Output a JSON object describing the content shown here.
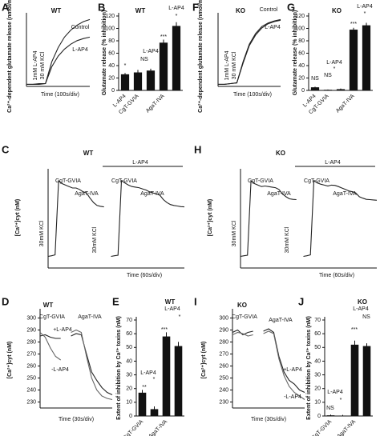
{
  "chart_data": [
    {
      "type": "line",
      "panel": "A",
      "title": "WT",
      "y_label": "Ca²⁺-dependent glutamate release (nmol/mg/div)",
      "x_label": "Time (100s/div)",
      "annotations": [
        "1mM L-AP4",
        "30 mM KCl"
      ],
      "xlim": [
        0,
        10
      ],
      "ylim": [
        0,
        10
      ],
      "x": [
        0,
        1,
        2,
        3,
        4,
        5,
        6,
        7,
        8,
        9,
        10
      ],
      "series": [
        {
          "name": "Control",
          "color": "#222222",
          "values": [
            0.3,
            0.3,
            0.4,
            0.4,
            3.5,
            5.5,
            7,
            8,
            8.7,
            9.2,
            9.5
          ]
        },
        {
          "name": "L-AP4",
          "color": "#222222",
          "values": [
            0.3,
            0.3,
            0.3,
            0.4,
            2.8,
            4.3,
            5.3,
            6,
            6.5,
            6.8,
            7
          ]
        }
      ]
    },
    {
      "type": "bar",
      "panel": "B",
      "title": "WT",
      "y_label": "Glutamate release (% inhibition)",
      "annotations": [
        "*",
        "L-AP4",
        "NS",
        "***",
        "L-AP4",
        "*"
      ],
      "categories": [
        "L-AP4",
        "CgT-GVIA",
        null,
        "AgaT-IVA",
        null
      ],
      "values": [
        26,
        29,
        32,
        77,
        104
      ],
      "errors": [
        2,
        4,
        3,
        5,
        6
      ],
      "color": "#111111",
      "ylim": [
        0,
        120
      ],
      "yticks": [
        0,
        20,
        40,
        60,
        80,
        100,
        120
      ]
    },
    {
      "type": "line",
      "panel": "F",
      "title": "KO",
      "y_label": "Ca²⁺-dependent glutamate release (nmol/mg/div)",
      "x_label": "Time (100s/div)",
      "annotations": [
        "1mM L-AP4",
        "30 mM KCl"
      ],
      "xlim": [
        0,
        10
      ],
      "ylim": [
        0,
        10
      ],
      "x": [
        0,
        1,
        2,
        3,
        4,
        5,
        6,
        7,
        8,
        9,
        10
      ],
      "series": [
        {
          "name": "Control",
          "color": "#222222",
          "values": [
            0.3,
            0.3,
            0.4,
            0.5,
            3.5,
            6,
            7.5,
            8.5,
            9,
            9.3,
            9.5
          ]
        },
        {
          "name": "L-AP4",
          "color": "#222222",
          "values": [
            0.3,
            0.3,
            0.4,
            0.5,
            3.3,
            5.8,
            7.3,
            8.3,
            8.9,
            9.2,
            9.4
          ]
        }
      ]
    },
    {
      "type": "bar",
      "panel": "G",
      "title": "KO",
      "y_label": "Glutamate release (% inhibition)",
      "annotations": [
        "NS",
        "L-AP4",
        "*",
        "NS",
        "***",
        "L-AP4",
        "*"
      ],
      "categories": [
        "L-AP4",
        "CgT-GVIA",
        null,
        "AgaT-IVA",
        null
      ],
      "values": [
        5,
        1,
        2,
        98,
        105
      ],
      "errors": [
        1,
        0.5,
        1,
        3,
        4
      ],
      "color": "#111111",
      "ylim": [
        0,
        120
      ],
      "yticks": [
        0,
        20,
        40,
        60,
        80,
        100,
        120
      ]
    },
    {
      "type": "line",
      "panel": "C",
      "title": "WT",
      "y_label": "[Ca²⁺]cyt (nM)",
      "x_label": "Time (60s/div)",
      "annotations": [
        "30mM KCl",
        "30mM KCl",
        "CgT-GVIA",
        "AgaT-IVA",
        "CgT-GVIA",
        "AgaT-IVA",
        "L-AP4"
      ],
      "xlim": [
        0,
        39
      ],
      "ylim": [
        0,
        330
      ],
      "x": [
        0,
        1,
        2,
        3,
        4,
        5,
        6,
        7,
        8,
        9,
        10,
        11,
        12,
        13,
        14,
        15,
        16,
        17,
        18,
        19,
        20,
        21,
        22,
        23,
        24,
        25,
        26,
        27,
        28,
        29,
        30,
        31,
        32,
        33,
        34,
        35,
        36,
        37,
        38,
        39
      ],
      "series": [
        {
          "color": "#222222",
          "values": [
            40,
            42,
            45,
            300,
            290,
            285,
            280,
            275,
            275,
            270,
            262,
            258,
            240,
            225,
            215,
            212,
            210,
            null,
            40,
            42,
            44,
            300,
            292,
            285,
            280,
            278,
            276,
            272,
            268,
            262,
            258,
            255,
            250,
            235,
            225,
            218,
            215,
            213,
            211,
            210
          ]
        }
      ]
    },
    {
      "type": "line",
      "panel": "H",
      "title": "KO",
      "y_label": "[Ca²⁺]cyt (nM)",
      "x_label": "Time (60s/div)",
      "annotations": [
        "30mM KCl",
        "30mM KCl",
        "CgT-GVIA",
        "AgaT-IVA",
        "CgT-GVIA",
        "AgaT-IVA",
        "L-AP4"
      ],
      "xlim": [
        0,
        39
      ],
      "ylim": [
        0,
        330
      ],
      "x": [
        0,
        1,
        2,
        3,
        4,
        5,
        6,
        7,
        8,
        9,
        10,
        11,
        12,
        13,
        14,
        15,
        16,
        17,
        18,
        19,
        20,
        21,
        22,
        23,
        24,
        25,
        26,
        27,
        28,
        29,
        30,
        31,
        32,
        33,
        34,
        35,
        36,
        37,
        38,
        39
      ],
      "series": [
        {
          "color": "#222222",
          "values": [
            40,
            42,
            44,
            300,
            290,
            285,
            280,
            282,
            280,
            278,
            276,
            270,
            255,
            245,
            238,
            236,
            235,
            null,
            40,
            42,
            45,
            300,
            292,
            288,
            285,
            282,
            285,
            284,
            280,
            275,
            270,
            265,
            262,
            258,
            245,
            240,
            236,
            235,
            234,
            233
          ]
        }
      ]
    },
    {
      "type": "line",
      "panel": "D",
      "title": "WT",
      "y_label": "[Ca²⁺]cyt (nM)",
      "x_label": "Time (30s/div)",
      "annotations": [
        "CgT-GVIA",
        "AgaT-IVA"
      ],
      "xlim": [
        0,
        14
      ],
      "ylim": [
        225,
        305
      ],
      "yticks": [
        230,
        240,
        250,
        260,
        270,
        280,
        290,
        300
      ],
      "x": [
        0,
        1,
        2,
        3,
        4,
        5,
        6,
        7,
        8,
        9,
        10,
        11,
        12,
        13,
        14
      ],
      "series": [
        {
          "name": "+L-AP4",
          "color": "#222222",
          "values": [
            285,
            286,
            284,
            283,
            283,
            null,
            285,
            287,
            286,
            270,
            255,
            248,
            242,
            238,
            236
          ]
        },
        {
          "name": "-L-AP4",
          "color": "#666666",
          "values": [
            288,
            284,
            275,
            268,
            265,
            null,
            288,
            290,
            288,
            268,
            250,
            240,
            235,
            233,
            232
          ]
        }
      ]
    },
    {
      "type": "bar",
      "panel": "E",
      "title": "WT",
      "y_label": "Extent of inhibition by Ca²⁺ toxins (nM)",
      "annotations": [
        "L-AP4",
        "**",
        "*",
        "L-AP4",
        "***",
        "*"
      ],
      "categories": [
        "CgT-GVIA",
        null,
        "AgaT-IVA",
        null
      ],
      "values": [
        17,
        5,
        58,
        51
      ],
      "errors": [
        2,
        2,
        3,
        3
      ],
      "color": "#111111",
      "ylim": [
        0,
        70
      ],
      "yticks": [
        0,
        10,
        20,
        30,
        40,
        50,
        60,
        70
      ]
    },
    {
      "type": "line",
      "panel": "I",
      "title": "KO",
      "y_label": "[Ca²⁺]cyt (nM)",
      "x_label": "Time (30s/div)",
      "annotations": [
        "CgT-GVIA",
        "AgaT-IVA"
      ],
      "xlim": [
        0,
        14
      ],
      "ylim": [
        225,
        305
      ],
      "yticks": [
        230,
        240,
        250,
        260,
        270,
        280,
        290,
        300
      ],
      "x": [
        0,
        1,
        2,
        3,
        4,
        5,
        6,
        7,
        8,
        9,
        10,
        11,
        12,
        13,
        14
      ],
      "series": [
        {
          "name": "+L-AP4",
          "color": "#222222",
          "values": [
            288,
            290,
            286,
            288,
            289,
            null,
            289,
            291,
            288,
            268,
            255,
            248,
            245,
            240,
            238
          ]
        },
        {
          "name": "-L-AP4",
          "color": "#666666",
          "values": [
            286,
            288,
            287,
            285,
            286,
            null,
            287,
            289,
            287,
            266,
            252,
            243,
            238,
            235,
            232
          ]
        }
      ]
    },
    {
      "type": "bar",
      "panel": "J",
      "title": "KO",
      "y_label": "Extent of inhibition by Ca²⁺ toxins (nM)",
      "annotations": [
        "L-AP4",
        "NS",
        "*",
        "L-AP4",
        "***",
        "NS"
      ],
      "categories": [
        "CgT-GVIA",
        null,
        "AgaT-IVA",
        null
      ],
      "values": [
        0.5,
        0.3,
        52,
        51
      ],
      "errors": [
        0.5,
        0.5,
        3,
        2
      ],
      "color": "#111111",
      "ylim": [
        0,
        70
      ],
      "yticks": [
        0,
        10,
        20,
        30,
        40,
        50,
        60,
        70
      ]
    }
  ]
}
